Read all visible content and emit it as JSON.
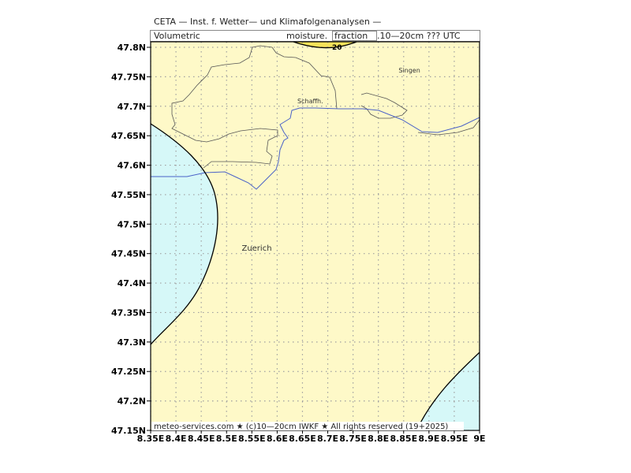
{
  "header": {
    "line1": "CETA — Inst. f. Wetter— und Klimafolgenanalysen —",
    "left": "Volumetric",
    "right_prefix": "moisture.",
    "right_unit": "fraction",
    "right_suffix": ".10—20cm  ??? UTC"
  },
  "footer": {
    "credit": "meteo-services.com ★ (c)10—20cm IWKF ★ All rights reserved (19+2025)"
  },
  "map": {
    "lon_range": [
      8.35,
      9.0
    ],
    "lat_range": [
      47.15,
      47.82
    ],
    "lat_ticks": [
      {
        "v": 47.8,
        "label": "47.8N"
      },
      {
        "v": 47.75,
        "label": "47.75N"
      },
      {
        "v": 47.7,
        "label": "47.7N"
      },
      {
        "v": 47.65,
        "label": "47.65N"
      },
      {
        "v": 47.6,
        "label": "47.6N"
      },
      {
        "v": 47.55,
        "label": "47.55N"
      },
      {
        "v": 47.5,
        "label": "47.5N"
      },
      {
        "v": 47.45,
        "label": "47.45N"
      },
      {
        "v": 47.4,
        "label": "47.4N"
      },
      {
        "v": 47.35,
        "label": "47.35N"
      },
      {
        "v": 47.3,
        "label": "47.3N"
      },
      {
        "v": 47.25,
        "label": "47.25N"
      },
      {
        "v": 47.2,
        "label": "47.2N"
      },
      {
        "v": 47.15,
        "label": "47.15N"
      }
    ],
    "lon_ticks": [
      {
        "v": 8.35,
        "label": "8.35E"
      },
      {
        "v": 8.4,
        "label": "8.4E"
      },
      {
        "v": 8.45,
        "label": "8.45E"
      },
      {
        "v": 8.5,
        "label": "8.5E"
      },
      {
        "v": 8.55,
        "label": "8.55E"
      },
      {
        "v": 8.6,
        "label": "8.6E"
      },
      {
        "v": 8.65,
        "label": "8.65E"
      },
      {
        "v": 8.7,
        "label": "8.7E"
      },
      {
        "v": 8.75,
        "label": "8.75E"
      },
      {
        "v": 8.8,
        "label": "8.8E"
      },
      {
        "v": 8.85,
        "label": "8.85E"
      },
      {
        "v": 8.9,
        "label": "8.9E"
      },
      {
        "v": 8.95,
        "label": "8.95E"
      },
      {
        "v": 9.0,
        "label": "9E"
      }
    ],
    "cities": [
      {
        "name": "Singen",
        "lon": 8.84,
        "lat": 47.757
      },
      {
        "name": "Schaffh.",
        "lon": 8.64,
        "lat": 47.705
      },
      {
        "name": "Zuerich",
        "lon": 8.53,
        "lat": 47.455
      }
    ],
    "contour_label": "20",
    "colors": {
      "background": "#fef9c8",
      "low_region": "#d6f8f8",
      "high_region": "#f6e35a",
      "grid": "#a0a0a0",
      "river": "#4a62c8",
      "border": "#555555",
      "contour": "#000000"
    }
  }
}
